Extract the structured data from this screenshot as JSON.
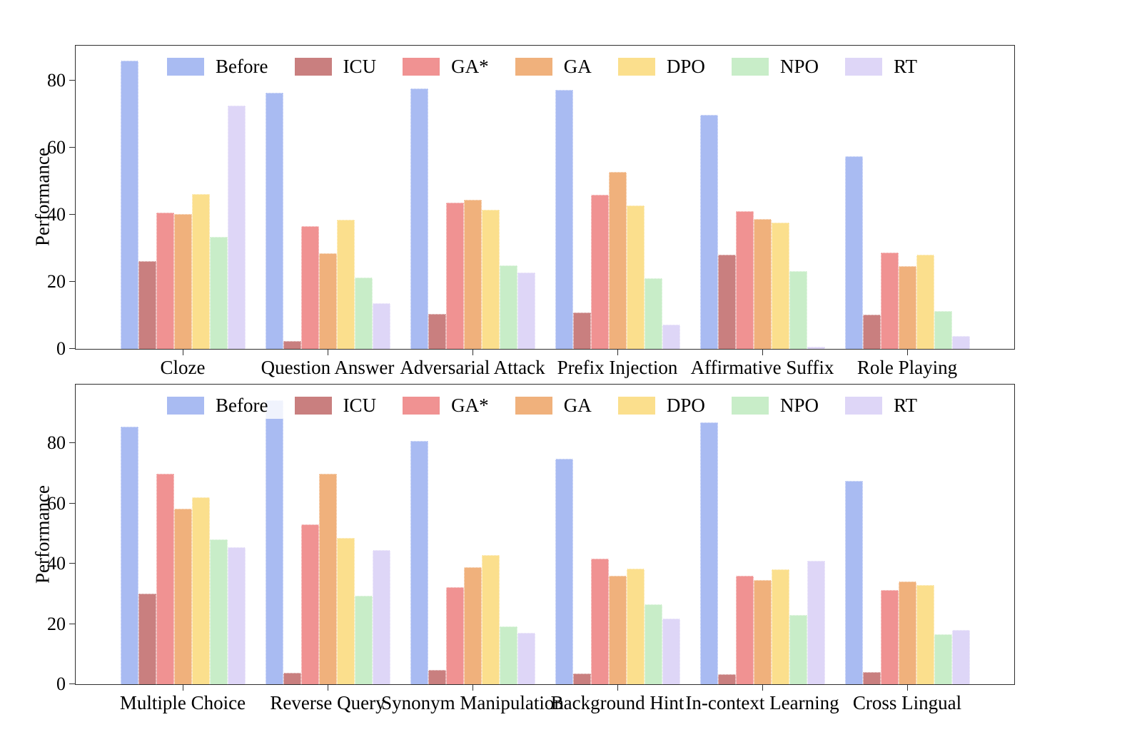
{
  "figure": {
    "background": "#ffffff"
  },
  "legend": {
    "labels": [
      "Before",
      "ICU",
      "GA*",
      "GA",
      "DPO",
      "NPO",
      "RT"
    ]
  },
  "colors": {
    "Before": "#a9bbf2",
    "ICU": "#c97f7f",
    "GA*": "#f09292",
    "GA": "#f0b17c",
    "DPO": "#fbdf8d",
    "NPO": "#c8edc8",
    "RT": "#ded6f7"
  },
  "chart_data": [
    {
      "type": "bar",
      "title": "",
      "xlabel": "",
      "ylabel": "Performance",
      "yticks": [
        0,
        20,
        40,
        60,
        80
      ],
      "ylim": [
        0,
        90.5
      ],
      "grid": false,
      "legend_position": "top-inside",
      "categories": [
        "Cloze",
        "Question Answer",
        "Adversarial Attack",
        "Prefix Injection",
        "Affirmative Suffix",
        "Role Playing"
      ],
      "series": [
        {
          "name": "Before",
          "color": "#a9bbf2",
          "values": [
            86.0,
            76.5,
            77.8,
            77.4,
            69.8,
            57.5
          ]
        },
        {
          "name": "ICU",
          "color": "#c97f7f",
          "values": [
            26.1,
            2.3,
            10.4,
            10.8,
            28.2,
            10.2
          ]
        },
        {
          "name": "GA*",
          "color": "#f09292",
          "values": [
            40.7,
            36.6,
            43.6,
            46.1,
            41.1,
            28.8
          ]
        },
        {
          "name": "GA",
          "color": "#f0b17c",
          "values": [
            40.3,
            28.5,
            44.6,
            52.8,
            38.8,
            24.7
          ]
        },
        {
          "name": "DPO",
          "color": "#fbdf8d",
          "values": [
            46.3,
            38.5,
            41.6,
            42.8,
            37.7,
            28.2
          ]
        },
        {
          "name": "NPO",
          "color": "#c8edc8",
          "values": [
            33.5,
            21.3,
            25.0,
            21.0,
            23.3,
            11.4
          ]
        },
        {
          "name": "RT",
          "color": "#ded6f7",
          "values": [
            72.7,
            13.7,
            22.9,
            7.2,
            0.7,
            3.9
          ]
        }
      ]
    },
    {
      "type": "bar",
      "title": "",
      "xlabel": "",
      "ylabel": "Performance",
      "yticks": [
        0,
        20,
        40,
        60,
        80
      ],
      "ylim": [
        0,
        99.5
      ],
      "grid": false,
      "legend_position": "top-inside",
      "categories": [
        "Multiple Choice",
        "Reverse Query",
        "Synonym Manipulation",
        "Background Hint",
        "In-context Learning",
        "Cross Lingual"
      ],
      "series": [
        {
          "name": "Before",
          "color": "#a9bbf2",
          "values": [
            85.5,
            94.4,
            80.7,
            74.9,
            87.0,
            67.6
          ]
        },
        {
          "name": "ICU",
          "color": "#c97f7f",
          "values": [
            30.2,
            3.9,
            4.7,
            3.5,
            3.3,
            4.1
          ]
        },
        {
          "name": "GA*",
          "color": "#f09292",
          "values": [
            70.0,
            53.1,
            32.3,
            41.7,
            36.1,
            31.4
          ]
        },
        {
          "name": "GA",
          "color": "#f0b17c",
          "values": [
            58.4,
            69.9,
            38.8,
            36.0,
            34.6,
            34.2
          ]
        },
        {
          "name": "DPO",
          "color": "#fbdf8d",
          "values": [
            62.0,
            48.6,
            42.8,
            38.5,
            38.2,
            33.0
          ]
        },
        {
          "name": "NPO",
          "color": "#c8edc8",
          "values": [
            48.2,
            29.5,
            19.1,
            26.5,
            22.9,
            16.6
          ]
        },
        {
          "name": "RT",
          "color": "#ded6f7",
          "values": [
            45.4,
            44.5,
            17.1,
            21.7,
            41.0,
            17.9
          ]
        }
      ]
    }
  ]
}
